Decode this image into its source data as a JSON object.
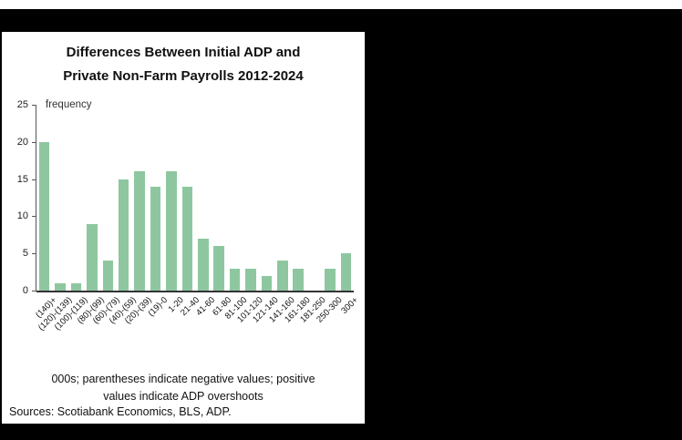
{
  "accent_color": "#8ec79f",
  "chart": {
    "title_line1": "Differences Between Initial ADP and",
    "title_line2": "Private Non-Farm Payrolls 2012-2024",
    "y_axis_label": "frequency",
    "footnote_line1": "000s; parentheses indicate negative values; positive",
    "footnote_line2": "values indicate ADP overshoots",
    "source": "Sources: Scotiabank Economics, BLS, ADP."
  },
  "chart_data": {
    "type": "bar",
    "title": "Differences Between Initial ADP and Private Non-Farm Payrolls 2012-2024",
    "xlabel": "",
    "ylabel": "frequency",
    "ylim": [
      0,
      25
    ],
    "yticks": [
      0,
      5,
      10,
      15,
      20,
      25
    ],
    "grid": false,
    "legend": false,
    "bar_color": "#8ec79f",
    "categories": [
      "(140)+",
      "(120)-(139)",
      "(100)-(119)",
      "(80)-(99)",
      "(60)-(79)",
      "(40)-(59)",
      "(20)-(39)",
      "(19)-0",
      "1-20",
      "21-40",
      "41-60",
      "61-80",
      "81-100",
      "101-120",
      "121-140",
      "141-160",
      "161-180",
      "181-250",
      "250-300",
      "300+"
    ],
    "values": [
      20,
      1,
      1,
      9,
      4,
      15,
      16,
      14,
      16,
      14,
      7,
      6,
      3,
      3,
      2,
      4,
      3,
      0,
      3,
      5
    ],
    "footnote": "000s; parentheses indicate negative values; positive values indicate ADP overshoots",
    "source": "Sources: Scotiabank Economics, BLS, ADP."
  }
}
